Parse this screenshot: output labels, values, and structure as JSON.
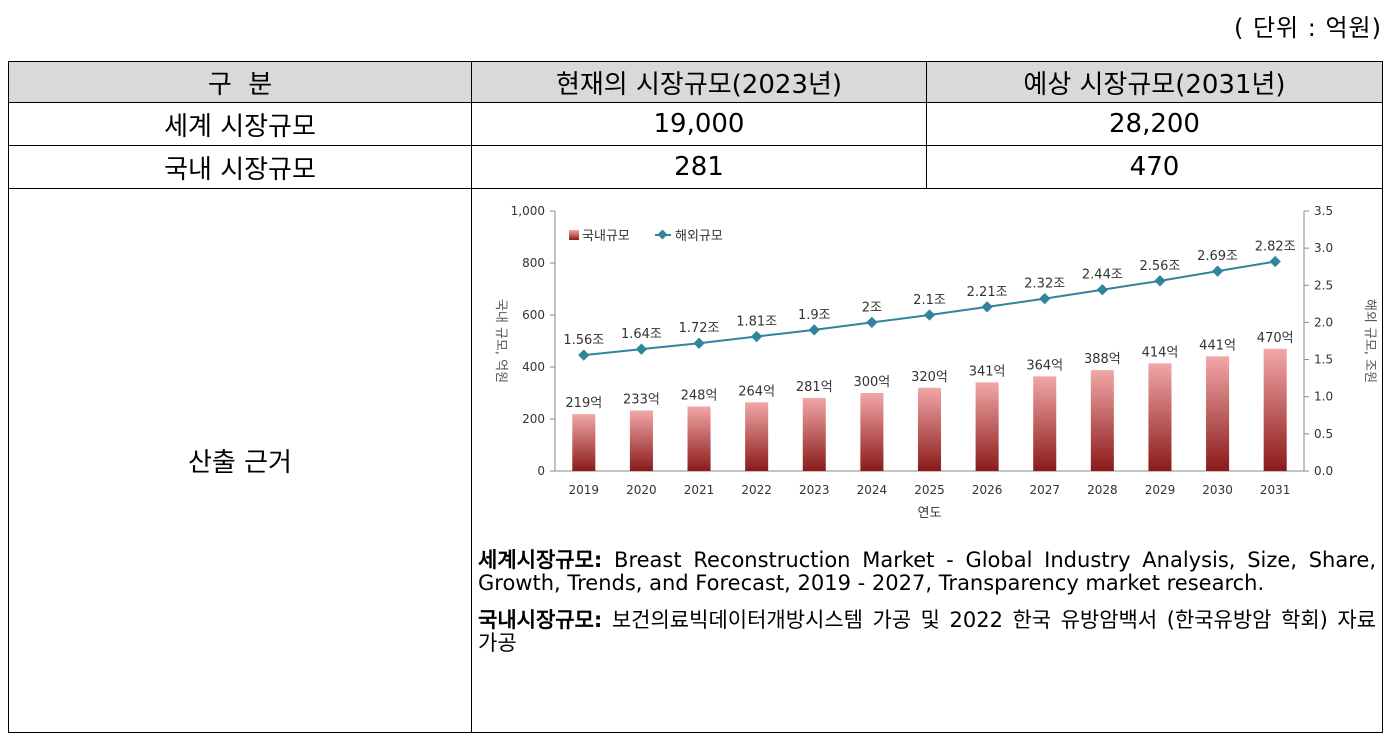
{
  "unit_label": "( 단위 : 억원)",
  "table": {
    "headers": [
      "구  분",
      "현재의 시장규모(2023년)",
      "예상 시장규모(2031년)"
    ],
    "rows": [
      {
        "label": "세계 시장규모",
        "current": "19,000",
        "forecast": "28,200"
      },
      {
        "label": "국내 시장규모",
        "current": "281",
        "forecast": "470"
      }
    ],
    "basis_label": "산출 근거"
  },
  "chart_data": {
    "type": "bar",
    "categories": [
      "2019",
      "2020",
      "2021",
      "2022",
      "2023",
      "2024",
      "2025",
      "2026",
      "2027",
      "2028",
      "2029",
      "2030",
      "2031"
    ],
    "xlabel": "연도",
    "ylabel_left": "국내 규모, 억원",
    "ylabel_right": "해외 규모, 조원",
    "ylim_left": [
      0,
      1000
    ],
    "ylim_right": [
      0,
      3.5
    ],
    "left_ticks": [
      "0",
      "200",
      "400",
      "600",
      "800",
      "1,000"
    ],
    "right_ticks": [
      "0.0",
      "0.5",
      "1.0",
      "1.5",
      "2.0",
      "2.5",
      "3.0",
      "3.5"
    ],
    "legend": [
      "국내규모",
      "해외규모"
    ],
    "legend_position": "top-left",
    "series": [
      {
        "name": "국내규모",
        "type": "bar",
        "axis": "left",
        "values": [
          219,
          233,
          248,
          264,
          281,
          300,
          320,
          341,
          364,
          388,
          414,
          441,
          470
        ],
        "labels": [
          "219억",
          "233억",
          "248억",
          "264억",
          "281억",
          "300억",
          "320억",
          "341억",
          "364억",
          "388억",
          "414억",
          "441억",
          "470억"
        ]
      },
      {
        "name": "해외규모",
        "type": "line",
        "axis": "right",
        "values": [
          1.56,
          1.64,
          1.72,
          1.81,
          1.9,
          2.0,
          2.1,
          2.21,
          2.32,
          2.44,
          2.56,
          2.69,
          2.82
        ],
        "labels": [
          "1.56조",
          "1.64조",
          "1.72조",
          "1.81조",
          "1.9조",
          "2조",
          "2.1조",
          "2.21조",
          "2.32조",
          "2.44조",
          "2.56조",
          "2.69조",
          "2.82조"
        ]
      }
    ],
    "colors": {
      "bar_top": "#f2a7a7",
      "bar_bottom": "#8b1a1a",
      "line": "#31849b",
      "axis": "#888888"
    }
  },
  "notes": [
    {
      "title": "세계시장규모:",
      "text": " Breast Reconstruction Market  - Global Industry Analysis, Size, Share, Growth, Trends, and Forecast, 2019 - 2027, Transparency market research."
    },
    {
      "title": "국내시장규모:",
      "text": " 보건의료빅데이터개방시스템 가공 및 2022 한국 유방암백서 (한국유방암 학회) 자료 가공"
    }
  ]
}
